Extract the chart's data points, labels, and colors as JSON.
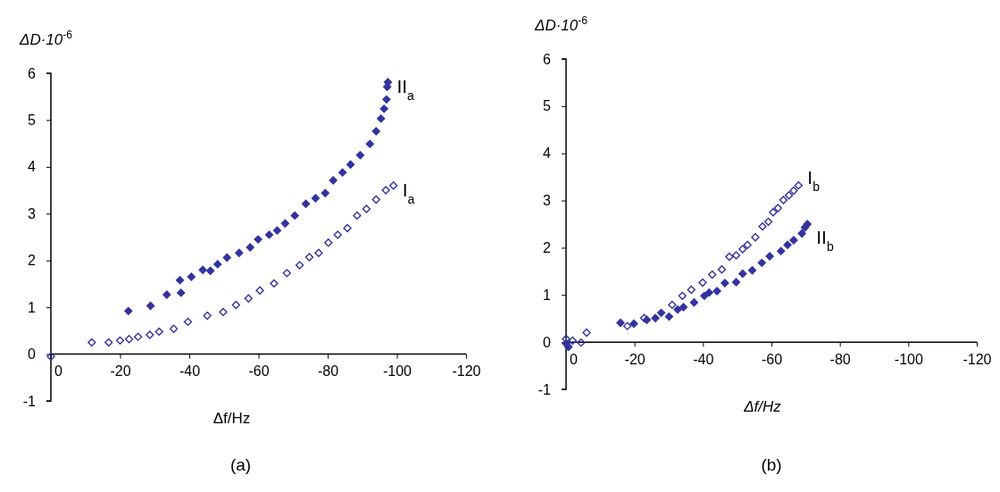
{
  "chart_data": [
    {
      "type": "scatter",
      "title": "(a)",
      "xlabel": "Δf/Hz",
      "ylabel": "ΔD·10$^{-6}$",
      "xlim": [
        0,
        -120
      ],
      "ylim": [
        -1,
        6
      ],
      "xticks": [
        0,
        -20,
        -40,
        -60,
        -80,
        -100,
        -120
      ],
      "yticks": [
        -1,
        0,
        1,
        2,
        3,
        4,
        5,
        6
      ],
      "marker": "diamond",
      "series": [
        {
          "name": "I$_{a}$",
          "color": "#3333a0",
          "x": [
            0,
            -11.8,
            -16.7,
            -20,
            -22.6,
            -25.2,
            -28.6,
            -31.3,
            -35.5,
            -39.6,
            -45.2,
            -49.8,
            -53.5,
            -57.1,
            -60.4,
            -64.5,
            -68.2,
            -71.9,
            -74.7,
            -77.4,
            -80.2,
            -82.9,
            -85.7,
            -88.5,
            -91.2,
            -94,
            -96.8,
            -99
          ],
          "values": [
            -0.05,
            0.25,
            0.25,
            0.29,
            0.32,
            0.37,
            0.41,
            0.48,
            0.54,
            0.69,
            0.82,
            0.9,
            1.05,
            1.19,
            1.36,
            1.51,
            1.73,
            1.9,
            2.07,
            2.16,
            2.38,
            2.55,
            2.69,
            2.96,
            3.1,
            3.3,
            3.5,
            3.6
          ]
        },
        {
          "name": "II$_{a}$",
          "color": "#3333a0",
          "x": [
            -22.4,
            -28.8,
            -33.5,
            -37.3,
            -37.6,
            -40.6,
            -43.9,
            -46.1,
            -48.2,
            -50.9,
            -54.4,
            -57.6,
            -59.9,
            -63.1,
            -65.4,
            -67.7,
            -70.5,
            -73.7,
            -76.5,
            -79.3,
            -81.6,
            -84.3,
            -86.6,
            -89.4,
            -92.2,
            -94,
            -95.4,
            -96.3,
            -97,
            -97.2,
            -97.4
          ],
          "values": [
            0.92,
            1.03,
            1.27,
            1.58,
            1.31,
            1.65,
            1.8,
            1.78,
            1.92,
            2.06,
            2.16,
            2.28,
            2.45,
            2.55,
            2.64,
            2.79,
            2.96,
            3.21,
            3.33,
            3.44,
            3.71,
            3.88,
            4.05,
            4.25,
            4.49,
            4.76,
            5.03,
            5.24,
            5.44,
            5.71,
            5.81
          ]
        }
      ]
    },
    {
      "type": "scatter",
      "title": "(b)",
      "xlabel": "Δf/Hz",
      "ylabel": "ΔD·10$^{-6}$",
      "xlim": [
        0,
        -120
      ],
      "ylim": [
        -1,
        6
      ],
      "xticks": [
        0,
        -20,
        -40,
        -60,
        -80,
        -100,
        -120
      ],
      "yticks": [
        -1,
        0,
        1,
        2,
        3,
        4,
        5,
        6
      ],
      "marker": "diamond",
      "series": [
        {
          "name": "I$_{b}$",
          "color": "#3333a0",
          "x": [
            0,
            -1.9,
            -4.4,
            -6,
            -17.9,
            -22.8,
            -31,
            -34,
            -36.6,
            -39.9,
            -42.7,
            -45.5,
            -47.7,
            -49.7,
            -51.6,
            -53,
            -55.3,
            -57.4,
            -59.1,
            -60.5,
            -61.9,
            -63.5,
            -65.1,
            -66.5,
            -67.9
          ],
          "values": [
            0.07,
            0.03,
            -0.01,
            0.2,
            0.34,
            0.51,
            0.79,
            0.98,
            1.11,
            1.26,
            1.43,
            1.54,
            1.81,
            1.84,
            1.97,
            2.06,
            2.22,
            2.45,
            2.55,
            2.75,
            2.84,
            3.01,
            3.11,
            3.21,
            3.32
          ]
        },
        {
          "name": "II$_{b}$",
          "color": "#3333a0",
          "x": [
            0,
            -0.7,
            -15.9,
            -19.8,
            -23.6,
            -26.1,
            -27.8,
            -30.1,
            -32.6,
            -34.3,
            -37.4,
            -40.4,
            -41.8,
            -44.1,
            -46.4,
            -49.7,
            -51.6,
            -54.4,
            -57.2,
            -59.5,
            -62.8,
            -64.7,
            -66.5,
            -68.9,
            -69.8,
            -70.5
          ],
          "values": [
            -0.03,
            -0.1,
            0.41,
            0.39,
            0.47,
            0.51,
            0.62,
            0.54,
            0.69,
            0.74,
            0.84,
            0.98,
            1.05,
            1.08,
            1.25,
            1.27,
            1.45,
            1.52,
            1.68,
            1.82,
            1.93,
            2.06,
            2.16,
            2.3,
            2.43,
            2.5
          ]
        }
      ]
    }
  ]
}
